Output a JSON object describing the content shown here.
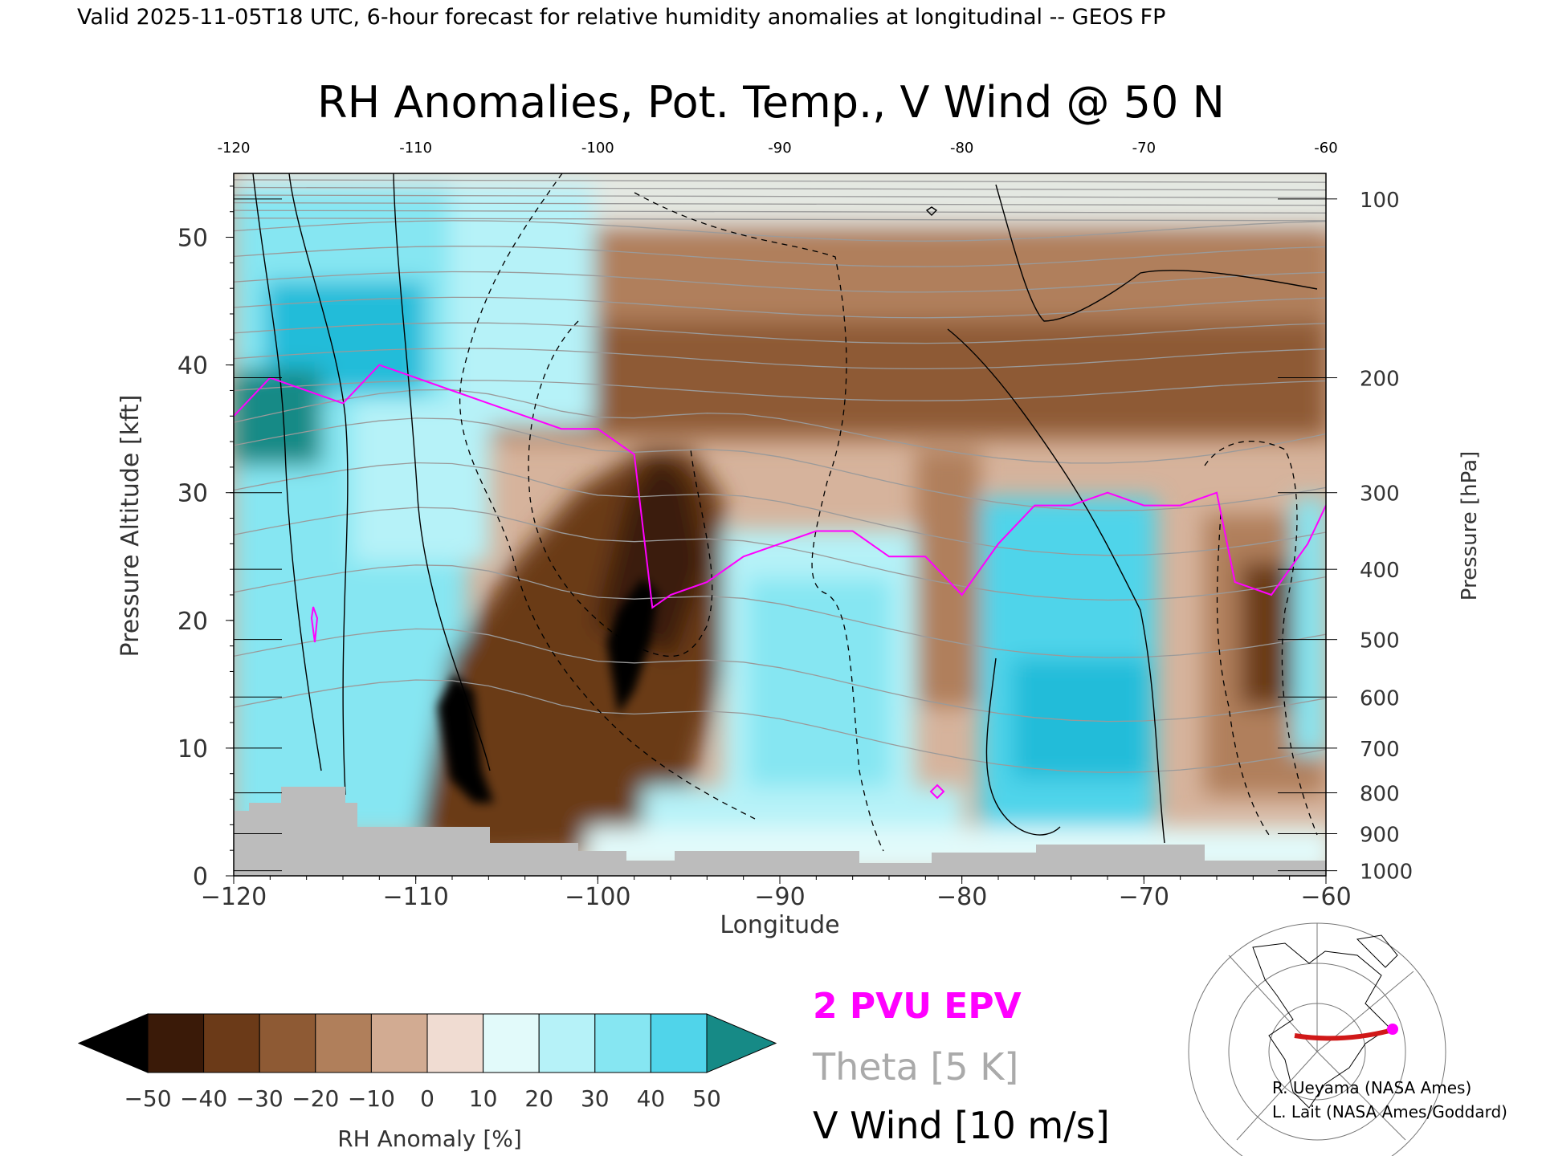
{
  "header": {
    "valid_line": "Valid 2025-11-05T18 UTC, 6-hour forecast for relative humidity anomalies at longitudinal -- GEOS FP",
    "title": "RH Anomalies, Pot. Temp., V Wind @ 50 N"
  },
  "axes": {
    "xlabel": "Longitude",
    "ylabel_left": "Pressure Altitude [kft]",
    "ylabel_right": "Pressure [hPa]",
    "x_ticks": [
      "−120",
      "−110",
      "−100",
      "−90",
      "−80",
      "−70",
      "−60"
    ],
    "x_ticks_top": [
      "-120",
      "-110",
      "-100",
      "-90",
      "-80",
      "-70",
      "-60"
    ],
    "y_ticks_left": [
      "0",
      "10",
      "20",
      "30",
      "40",
      "50"
    ],
    "y_ticks_right": [
      "100",
      "200",
      "300",
      "400",
      "500",
      "600",
      "700",
      "800",
      "900",
      "1000"
    ]
  },
  "colorbar": {
    "label": "RH Anomaly [%]",
    "ticks": [
      "−50",
      "−40",
      "−30",
      "−20",
      "−10",
      "0",
      "10",
      "20",
      "30",
      "40",
      "50"
    ],
    "colors": [
      "#000000",
      "#3a1a08",
      "#6b3a18",
      "#8e5a34",
      "#b07f5b",
      "#d2ab92",
      "#f0dcd2",
      "#e2fafa",
      "#b6f2f8",
      "#86e6f2",
      "#50d4ea",
      "#22bcd9",
      "#0a8aa8",
      "#168a86"
    ]
  },
  "legend": {
    "epv": "2 PVU EPV",
    "theta": "Theta [5 K]",
    "vwind": "V Wind [10 m/s]",
    "epv_color": "#ff00ff",
    "theta_color": "#aaaaaa",
    "vwind_color": "#000000"
  },
  "credits": {
    "line1": "R. Ueyama (NASA Ames)",
    "line2": "L. Lait (NASA Ames/Goddard)"
  },
  "chart_data": {
    "type": "heatmap",
    "title": "RH Anomalies, Pot. Temp., V Wind @ 50 N",
    "xlabel": "Longitude",
    "ylabel": "Pressure Altitude [kft]",
    "xlim": [
      -120,
      -60
    ],
    "ylim": [
      0,
      55
    ],
    "rh_anomaly_regions_percent": [
      {
        "lon": -116,
        "kft": 38,
        "value": 50
      },
      {
        "lon": -114,
        "kft": 25,
        "value": 30
      },
      {
        "lon": -107,
        "kft": 10,
        "value": -50
      },
      {
        "lon": -98,
        "kft": 18,
        "value": -50
      },
      {
        "lon": -102,
        "kft": 20,
        "value": -40
      },
      {
        "lon": -100,
        "kft": 32,
        "value": -30
      },
      {
        "lon": -90,
        "kft": 42,
        "value": -30
      },
      {
        "lon": -88,
        "kft": 18,
        "value": 20
      },
      {
        "lon": -76,
        "kft": 15,
        "value": 40
      },
      {
        "lon": -72,
        "kft": 28,
        "value": 20
      },
      {
        "lon": -63,
        "kft": 20,
        "value": -40
      },
      {
        "lon": -80,
        "kft": 40,
        "value": -30
      }
    ],
    "epv_2pvu_kft": {
      "lon": [
        -120,
        -118,
        -116,
        -114,
        -112,
        -110,
        -108,
        -106,
        -104,
        -102,
        -100,
        -98,
        -97,
        -96,
        -94,
        -92,
        -90,
        -88,
        -86,
        -84,
        -82,
        -80,
        -78,
        -76,
        -74,
        -72,
        -70,
        -68,
        -66,
        -65,
        -63,
        -61,
        -60
      ],
      "kft": [
        36,
        39,
        38,
        37,
        40,
        39,
        38,
        37,
        36,
        35,
        35,
        33,
        21,
        22,
        23,
        25,
        26,
        27,
        27,
        25,
        25,
        22,
        26,
        29,
        29,
        30,
        29,
        29,
        30,
        23,
        22,
        26,
        29
      ]
    },
    "theta_levels_K": [
      290,
      300,
      310,
      320,
      330,
      340,
      350,
      360,
      370,
      380,
      390,
      400,
      410,
      420
    ],
    "vwind_contours_ms": [
      -10,
      0,
      10
    ],
    "pressure_levels_hPa": [
      100,
      200,
      300,
      400,
      500,
      600,
      700,
      800,
      900,
      1000
    ],
    "pressure_level_kft": [
      53,
      39,
      30,
      24,
      18.5,
      14,
      10,
      6.5,
      3.3,
      0.4
    ]
  }
}
